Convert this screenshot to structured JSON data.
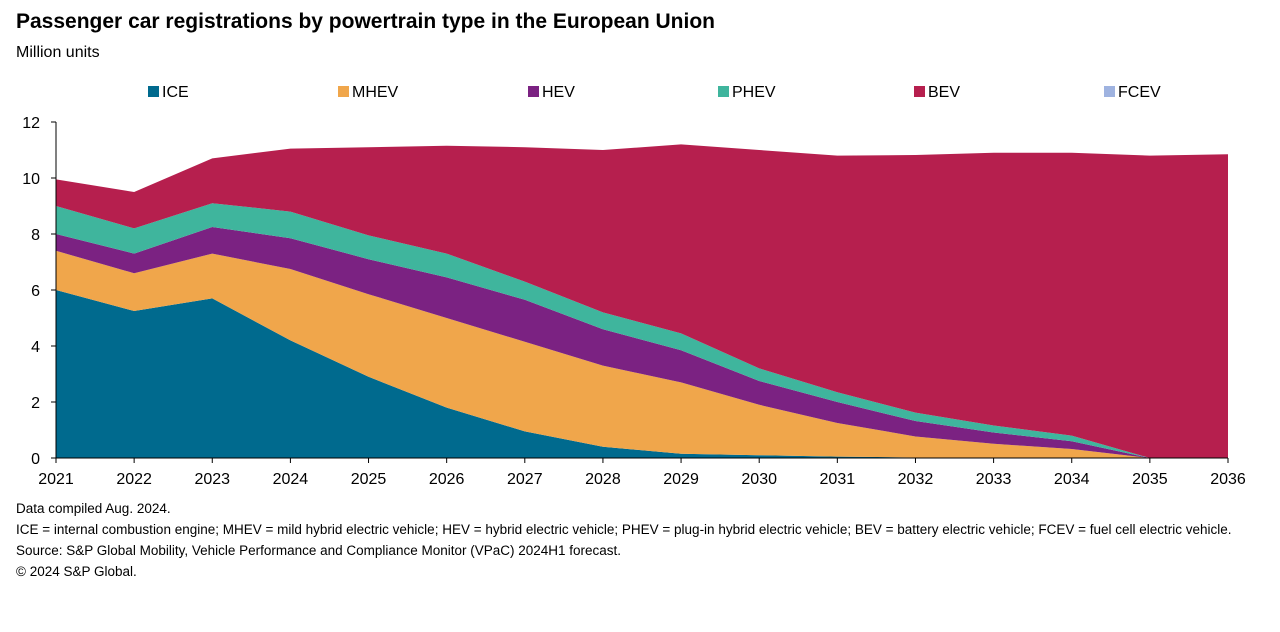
{
  "chart_data": {
    "type": "area",
    "stacked": true,
    "title": "Passenger car registrations by powertrain type in the European Union",
    "subtitle": "Million units",
    "xlabel": "",
    "ylabel": "",
    "ylim": [
      0,
      12
    ],
    "y_ticks": [
      0,
      2,
      4,
      6,
      8,
      10,
      12
    ],
    "grid": false,
    "legend_position": "top",
    "x": [
      "2021",
      "2022",
      "2023",
      "2024",
      "2025",
      "2026",
      "2027",
      "2028",
      "2029",
      "2030",
      "2031",
      "2032",
      "2033",
      "2034",
      "2035",
      "2036"
    ],
    "series": [
      {
        "name": "ICE",
        "color": "#006a8e",
        "values": [
          6.0,
          5.25,
          5.7,
          4.2,
          2.9,
          1.8,
          0.95,
          0.4,
          0.15,
          0.1,
          0.05,
          0.02,
          0.01,
          0.0,
          0.0,
          0.0
        ]
      },
      {
        "name": "MHEV",
        "color": "#f0a64b",
        "values": [
          1.4,
          1.35,
          1.6,
          2.55,
          2.95,
          3.2,
          3.2,
          2.9,
          2.55,
          1.8,
          1.2,
          0.75,
          0.5,
          0.32,
          0.0,
          0.0
        ]
      },
      {
        "name": "HEV",
        "color": "#7b2282",
        "values": [
          0.6,
          0.7,
          0.95,
          1.1,
          1.25,
          1.45,
          1.5,
          1.3,
          1.15,
          0.85,
          0.75,
          0.55,
          0.4,
          0.28,
          0.0,
          0.0
        ]
      },
      {
        "name": "PHEV",
        "color": "#3fb59d",
        "values": [
          1.0,
          0.9,
          0.85,
          0.95,
          0.85,
          0.85,
          0.65,
          0.6,
          0.6,
          0.45,
          0.35,
          0.3,
          0.25,
          0.2,
          0.0,
          0.0
        ]
      },
      {
        "name": "BEV",
        "color": "#b61f4e",
        "values": [
          0.95,
          1.3,
          1.6,
          2.25,
          3.15,
          3.85,
          4.8,
          5.8,
          6.75,
          7.8,
          8.45,
          9.2,
          9.74,
          10.1,
          10.8,
          10.85
        ]
      },
      {
        "name": "FCEV",
        "color": "#9fb3e0",
        "values": [
          0,
          0,
          0,
          0,
          0,
          0,
          0,
          0,
          0,
          0,
          0,
          0,
          0,
          0,
          0,
          0
        ]
      }
    ]
  },
  "notes": {
    "compiled": "Data compiled Aug. 2024.",
    "definitions": "ICE = internal combustion engine; MHEV = mild hybrid electric vehicle; HEV = hybrid electric vehicle; PHEV = plug-in hybrid electric vehicle; BEV = battery electric vehicle; FCEV = fuel cell electric vehicle.",
    "source": "Source: S&P Global Mobility, Vehicle Performance and Compliance Monitor (VPaC) 2024H1 forecast.",
    "copyright": "© 2024 S&P Global."
  }
}
